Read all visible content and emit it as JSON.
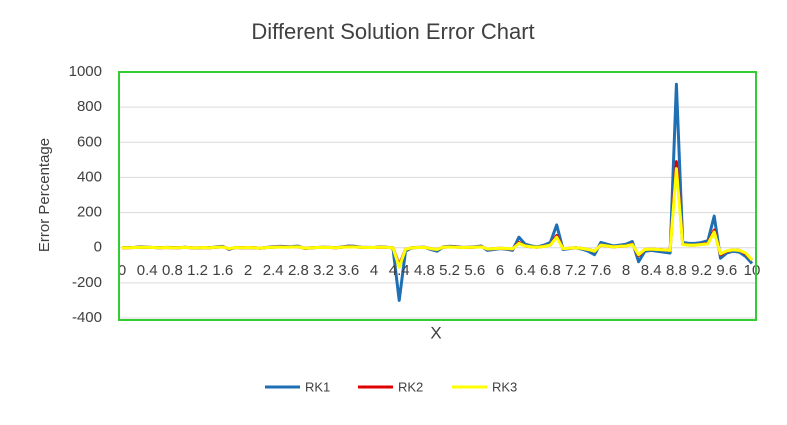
{
  "chart_data": {
    "type": "line",
    "title": "Different Solution Error Chart",
    "x_label": "X",
    "y_label": "Error Percentage",
    "categories": [
      "0",
      null,
      null,
      null,
      "0.4",
      null,
      null,
      null,
      "0.8",
      null,
      null,
      null,
      "1.2",
      null,
      null,
      null,
      "1.6",
      null,
      null,
      null,
      "2",
      null,
      null,
      null,
      "2.4",
      null,
      null,
      null,
      "2.8",
      null,
      null,
      null,
      "3.2",
      null,
      null,
      null,
      "3.6",
      null,
      null,
      null,
      "4",
      null,
      null,
      null,
      "4.4",
      null,
      null,
      null,
      "4.8",
      null,
      null,
      null,
      "5.2",
      null,
      null,
      null,
      "5.6",
      null,
      null,
      null,
      "6",
      null,
      null,
      null,
      "6.4",
      null,
      null,
      null,
      "6.8",
      null,
      null,
      null,
      "7.2",
      null,
      null,
      null,
      "7.6",
      null,
      null,
      null,
      "8",
      null,
      null,
      null,
      "8.4",
      null,
      null,
      null,
      "8.8",
      null,
      null,
      null,
      "9.2",
      null,
      null,
      null,
      "9.6",
      null,
      null,
      null,
      "10"
    ],
    "series": [
      {
        "name": "RK1",
        "color": "#1f6fb5",
        "values": [
          0,
          1,
          2,
          5,
          3,
          1,
          0,
          2,
          1,
          0,
          3,
          0,
          -2,
          1,
          0,
          5,
          8,
          -10,
          2,
          0,
          1,
          0,
          -3,
          2,
          5,
          8,
          6,
          7,
          9,
          -5,
          0,
          1,
          3,
          2,
          0,
          5,
          10,
          8,
          3,
          2,
          1,
          5,
          3,
          0,
          -300,
          -20,
          0,
          2,
          3,
          -10,
          -20,
          5,
          8,
          6,
          2,
          3,
          5,
          10,
          -15,
          -10,
          -5,
          -8,
          -15,
          60,
          20,
          10,
          5,
          15,
          30,
          130,
          -10,
          -5,
          0,
          -8,
          -20,
          -40,
          30,
          20,
          10,
          15,
          20,
          35,
          -80,
          -20,
          -15,
          -20,
          -25,
          -30,
          930,
          30,
          25,
          25,
          30,
          40,
          180,
          -60,
          -30,
          -20,
          -25,
          -50,
          -90
        ]
      },
      {
        "name": "RK2",
        "color": "#e00000",
        "values": [
          0,
          0,
          1,
          3,
          2,
          1,
          0,
          1,
          0,
          0,
          2,
          0,
          -1,
          1,
          0,
          3,
          5,
          -6,
          1,
          0,
          1,
          0,
          -2,
          1,
          3,
          5,
          4,
          4,
          5,
          -3,
          0,
          1,
          2,
          1,
          0,
          3,
          6,
          5,
          2,
          1,
          1,
          3,
          2,
          0,
          -100,
          -10,
          0,
          1,
          2,
          -5,
          -10,
          3,
          5,
          4,
          1,
          2,
          3,
          6,
          -8,
          -5,
          -3,
          -5,
          -8,
          30,
          10,
          5,
          3,
          8,
          15,
          70,
          -5,
          -3,
          0,
          -4,
          -10,
          -20,
          15,
          10,
          5,
          8,
          10,
          20,
          -45,
          -10,
          -8,
          -10,
          -12,
          -15,
          490,
          20,
          15,
          15,
          20,
          25,
          100,
          -40,
          -20,
          -12,
          -15,
          -35,
          -70
        ]
      },
      {
        "name": "RK3",
        "color": "#ffff00",
        "values": [
          0,
          0,
          1,
          2,
          2,
          1,
          0,
          1,
          0,
          0,
          2,
          0,
          -1,
          1,
          0,
          3,
          4,
          -5,
          1,
          0,
          1,
          0,
          -2,
          1,
          2,
          4,
          3,
          4,
          5,
          -3,
          0,
          1,
          2,
          1,
          0,
          3,
          5,
          4,
          2,
          1,
          1,
          3,
          2,
          0,
          -110,
          -10,
          0,
          1,
          2,
          -5,
          -10,
          3,
          4,
          3,
          1,
          2,
          3,
          5,
          -7,
          -5,
          -3,
          -4,
          -7,
          25,
          10,
          5,
          3,
          7,
          15,
          60,
          -5,
          -3,
          0,
          -4,
          -10,
          -20,
          15,
          10,
          5,
          8,
          10,
          18,
          -40,
          -10,
          -8,
          -10,
          -12,
          -15,
          450,
          18,
          15,
          15,
          18,
          22,
          90,
          -35,
          -18,
          -12,
          -15,
          -30,
          -70
        ]
      }
    ],
    "ylim": [
      -400,
      1000
    ],
    "yticks": [
      -400,
      -200,
      0,
      200,
      400,
      600,
      800,
      1000
    ],
    "grid": true,
    "legend": "bottom"
  }
}
